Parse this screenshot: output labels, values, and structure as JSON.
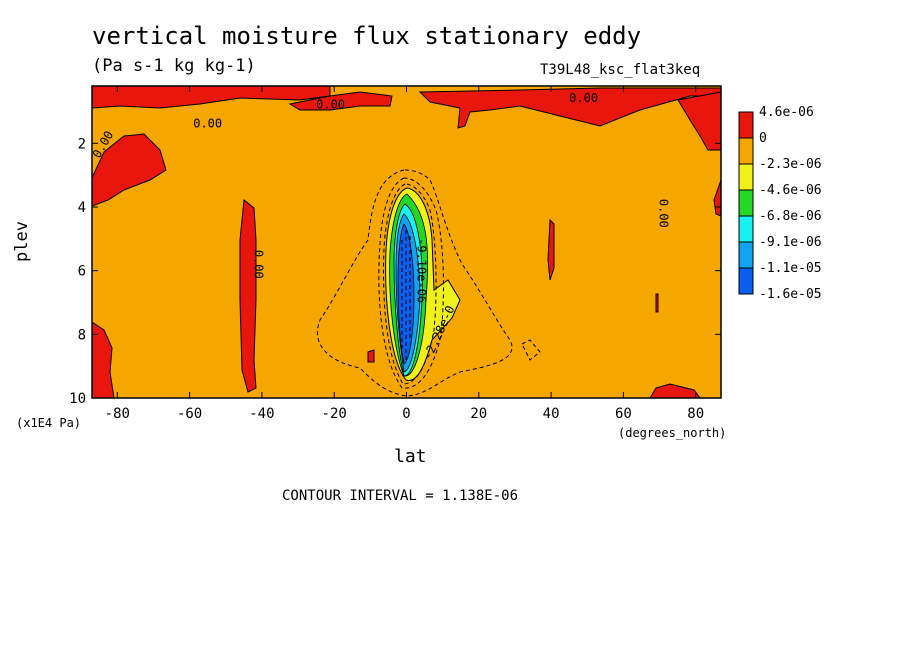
{
  "chart_data": {
    "type": "heatmap",
    "title": "vertical moisture flux stationary eddy",
    "units": "(Pa s-1 kg kg-1)",
    "run_label": "T39L48_ksc_flat3keq",
    "xlabel": "lat",
    "ylabel": "plev",
    "x_unit": "(degrees_north)",
    "y_unit": "(x1E4 Pa)",
    "contour_interval_text": "CONTOUR INTERVAL = 1.138E-06",
    "xlim": [
      -87,
      87
    ],
    "ylim": [
      10,
      0.2
    ],
    "x_ticks": [
      -80,
      -60,
      -40,
      -20,
      0,
      20,
      40,
      60,
      80
    ],
    "x_tick_labels": [
      "-80",
      "-60",
      "-40",
      "-20",
      "0",
      "20",
      "40",
      "60",
      "80"
    ],
    "y_ticks": [
      2,
      4,
      6,
      8,
      10
    ],
    "y_tick_labels": [
      "2",
      "4",
      "6",
      "8",
      "10"
    ],
    "legend": {
      "placement": "right",
      "levels": [
        {
          "label": "4.6e-06",
          "color": "#e8160c"
        },
        {
          "label": "0",
          "color": "#f5a700"
        },
        {
          "label": "-2.3e-06",
          "color": "#f0f01a"
        },
        {
          "label": "-4.6e-06",
          "color": "#26d826"
        },
        {
          "label": "-6.8e-06",
          "color": "#19f0f0"
        },
        {
          "label": "-9.1e-06",
          "color": "#11a4f0"
        },
        {
          "label": "-1.1e-05",
          "color": "#0a5ef0"
        },
        {
          "label": "-1.6e-05",
          "color": ""
        }
      ]
    },
    "contour_labels": [
      {
        "text": "0.00",
        "lat": 49,
        "plev": 0.7
      },
      {
        "text": "0.00",
        "lat": -55,
        "plev": 1.5
      },
      {
        "text": "0.00",
        "lat": -83,
        "plev": 2.1
      },
      {
        "text": "0.00",
        "lat": -21,
        "plev": 0.9
      },
      {
        "text": "0.00",
        "lat": -42,
        "plev": 5.8
      },
      {
        "text": "0.00",
        "lat": 70,
        "plev": 4.2
      },
      {
        "text": "-2.28e-0",
        "lat": 10,
        "plev": 8.0
      },
      {
        "text": "-9.10e-06",
        "lat": 3,
        "plev": 6.0
      }
    ]
  }
}
